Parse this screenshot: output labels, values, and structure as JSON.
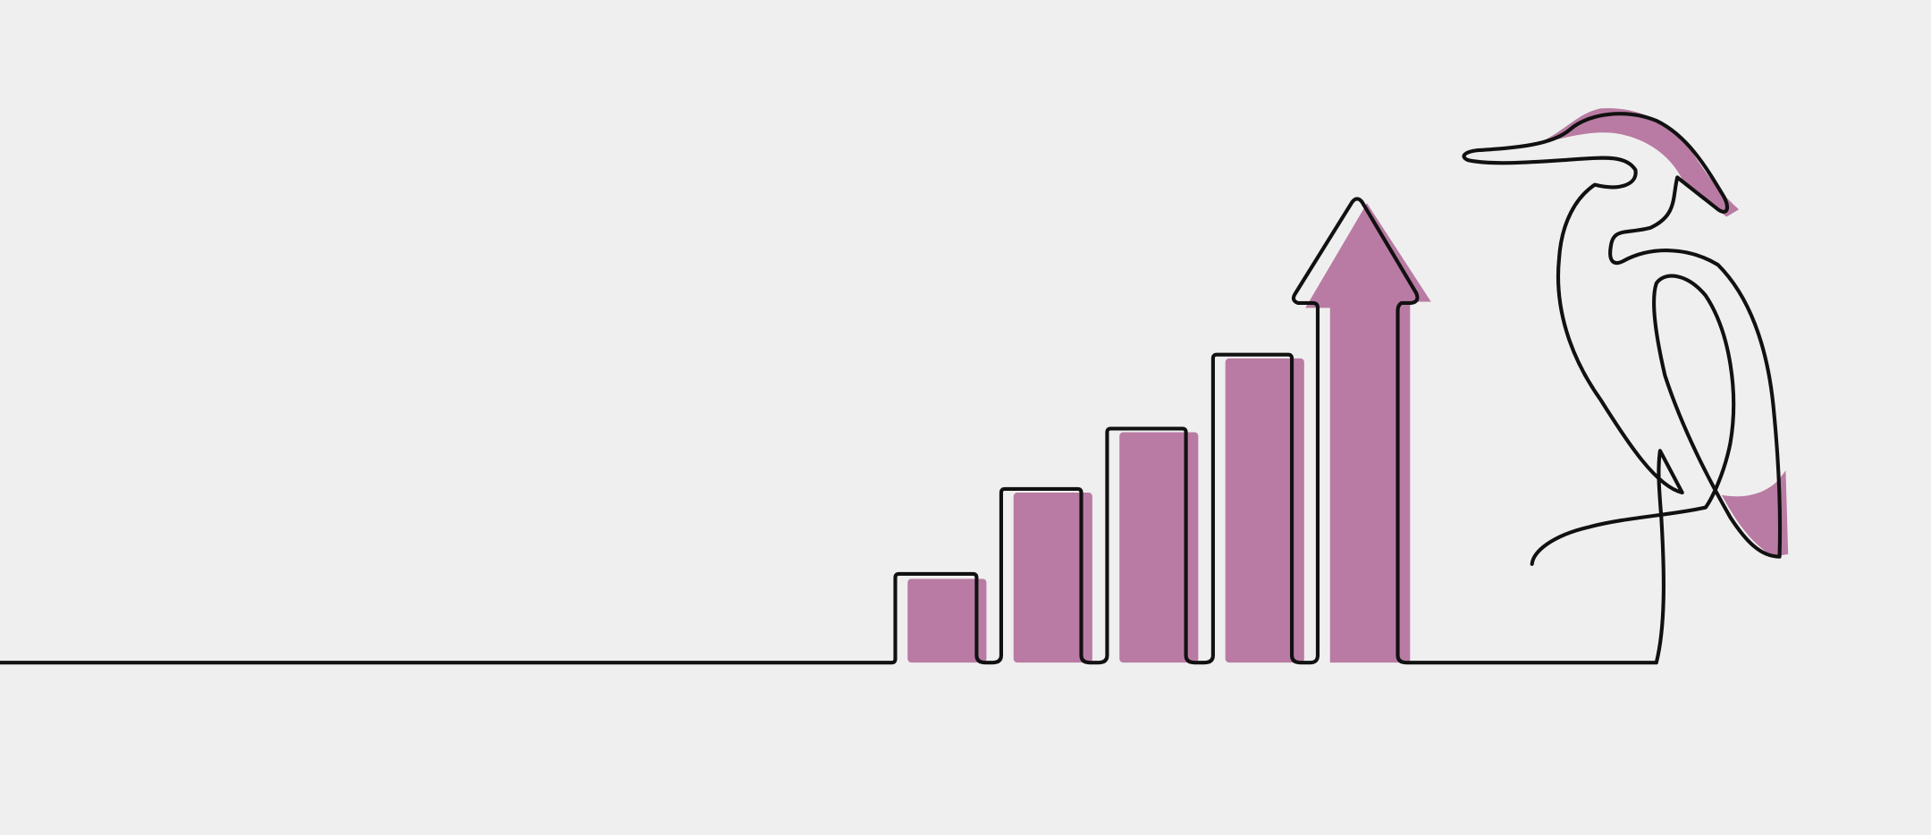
{
  "illustration": {
    "subject": "growth-bars-with-arrow-and-heron",
    "colors": {
      "background": "#efefef",
      "accent_fill": "#b97ba3",
      "line": "#111111"
    }
  }
}
